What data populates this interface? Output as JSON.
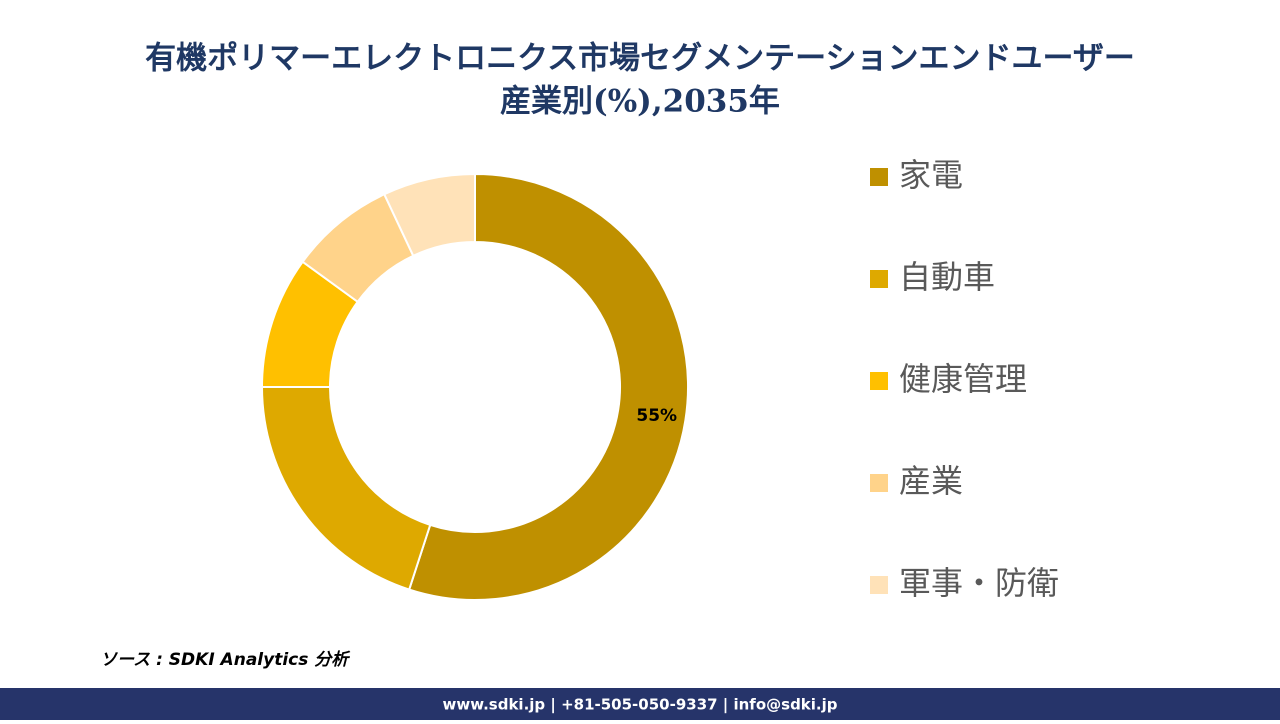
{
  "chart_data": {
    "type": "donut",
    "title": [
      "有機ポリマーエレクトロニクス市場セグメンテーションエンドユーザー",
      "産業別(%),2035年"
    ],
    "categories": [
      "家電",
      "自動車",
      "健康管理",
      "産業",
      "軍事・防衛"
    ],
    "values": [
      55,
      20,
      10,
      8,
      7
    ],
    "value_labels": [
      "55%",
      null,
      null,
      null,
      null
    ],
    "colors": [
      "#bf9000",
      "#dea900",
      "#ffc000",
      "#ffd38a",
      "#ffe2b8"
    ],
    "legend": "right"
  },
  "source": "ソース : SDKI Analytics 分析",
  "footer": "www.sdki.jp | +81-505-050-9337 | info@sdki.jp"
}
